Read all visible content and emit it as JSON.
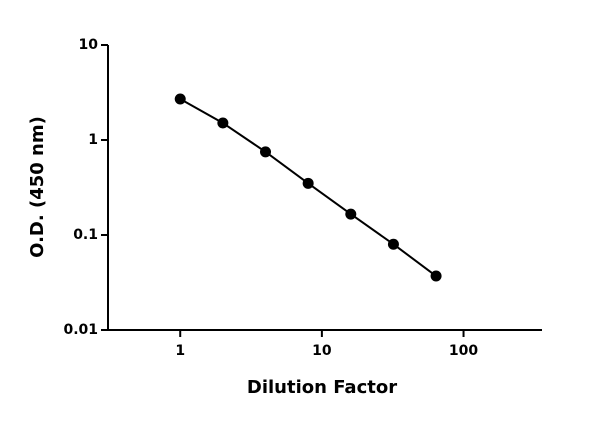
{
  "chart_data": {
    "type": "line",
    "x_label": "Dilution Factor",
    "y_label": "O.D. (450 nm)",
    "x": [
      1,
      2,
      4,
      8,
      16,
      32,
      64
    ],
    "series": [
      {
        "name": "O.D.",
        "color": "#000000",
        "values": [
          2.7,
          1.51,
          0.75,
          0.35,
          0.166,
          0.08,
          0.037
        ]
      }
    ],
    "xscale": "log",
    "yscale": "log",
    "xlim": [
      0.285,
      358
    ],
    "ylim": [
      0.01,
      10
    ],
    "xticks": [
      1,
      10,
      100
    ],
    "yticks": [
      0.01,
      0.1,
      1,
      10
    ],
    "grid": false,
    "legend": false
  }
}
